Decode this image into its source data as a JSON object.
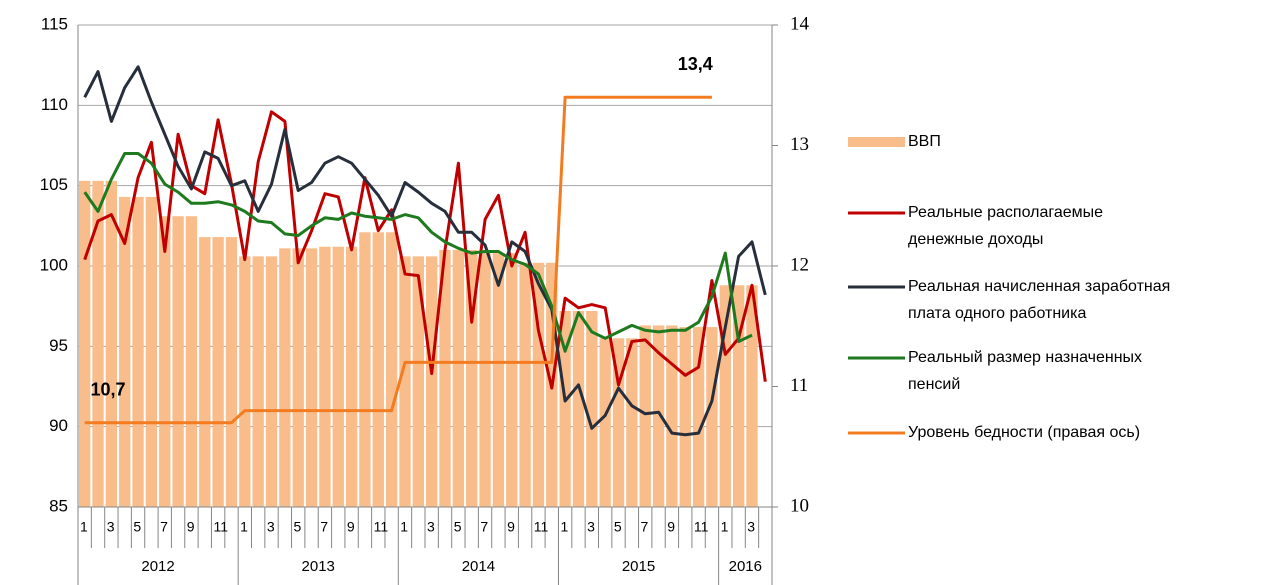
{
  "chart_data": {
    "type": "bar-line",
    "categories": [
      "1",
      null,
      "3",
      null,
      "5",
      null,
      "7",
      null,
      "9",
      null,
      "11",
      null,
      "1",
      null,
      "3",
      null,
      "5",
      null,
      "7",
      null,
      "9",
      null,
      "11",
      null,
      "1",
      null,
      "3",
      null,
      "5",
      null,
      "7",
      null,
      "9",
      null,
      "11",
      null,
      "1",
      null,
      "3",
      null,
      "5",
      null,
      "7",
      null,
      "9",
      null,
      "11",
      null,
      "1",
      null,
      "3",
      null
    ],
    "years": [
      "2012",
      "2013",
      "2014",
      "2015",
      "2016"
    ],
    "ylim": [
      85,
      115
    ],
    "yticks": [
      85,
      90,
      95,
      100,
      105,
      110,
      115
    ],
    "y2lim": [
      10,
      14
    ],
    "y2ticks": [
      10,
      11,
      12,
      13,
      14
    ],
    "grid": true,
    "legend": "right",
    "series": [
      {
        "name": "ВВП",
        "type": "bar",
        "color": "#f9bd8c",
        "values": [
          105.3,
          105.3,
          105.3,
          104.3,
          104.3,
          104.3,
          103.1,
          103.1,
          103.1,
          101.8,
          101.8,
          101.8,
          100.6,
          100.6,
          100.6,
          101.1,
          101.1,
          101.1,
          101.2,
          101.2,
          101.2,
          102.1,
          102.1,
          102.1,
          100.6,
          100.6,
          100.6,
          101.0,
          101.0,
          101.0,
          100.8,
          100.8,
          100.8,
          100.2,
          100.2,
          100.2,
          97.2,
          97.2,
          97.2,
          95.5,
          95.5,
          95.5,
          96.3,
          96.3,
          96.3,
          96.2,
          96.2,
          96.2,
          98.8,
          98.8,
          98.8,
          null
        ]
      },
      {
        "name": "Реальные располагаемые\nденежные доходы",
        "type": "line",
        "color": "#c00000",
        "values": [
          100.4,
          102.8,
          103.2,
          101.4,
          105.5,
          107.7,
          100.9,
          108.2,
          105.0,
          104.5,
          109.1,
          105.1,
          100.4,
          106.5,
          109.6,
          109.0,
          100.2,
          102.2,
          104.5,
          104.3,
          101.0,
          105.5,
          102.2,
          103.5,
          99.5,
          99.4,
          93.3,
          101.0,
          106.4,
          96.5,
          102.9,
          104.4,
          100.0,
          102.1,
          96.0,
          92.4,
          98.0,
          97.4,
          97.6,
          97.4,
          92.6,
          95.3,
          95.4,
          94.6,
          93.9,
          93.2,
          93.7,
          99.1,
          94.5,
          95.5,
          98.8,
          92.8
        ]
      },
      {
        "name": "Реальная начисленная заработная\nплата одного работника",
        "type": "line",
        "color": "#262f3b",
        "values": [
          110.5,
          112.1,
          109.0,
          111.1,
          112.4,
          110.2,
          108.2,
          106.2,
          104.8,
          107.1,
          106.7,
          105.0,
          105.3,
          103.4,
          105.1,
          108.5,
          104.7,
          105.2,
          106.4,
          106.8,
          106.4,
          105.4,
          104.4,
          103.1,
          105.2,
          104.6,
          103.9,
          103.4,
          102.1,
          102.1,
          101.3,
          98.8,
          101.5,
          100.9,
          98.9,
          97.3,
          91.6,
          92.6,
          89.9,
          90.7,
          92.4,
          91.3,
          90.8,
          90.9,
          89.6,
          89.5,
          89.6,
          91.6,
          96.2,
          100.6,
          101.5,
          98.2
        ]
      },
      {
        "name": "Реальный размер назначенных\nпенсий",
        "type": "line",
        "color": "#1e7a1e",
        "values": [
          104.6,
          103.4,
          105.4,
          107.0,
          107.0,
          106.4,
          105.1,
          104.6,
          103.9,
          103.9,
          104.0,
          103.8,
          103.4,
          102.8,
          102.7,
          102.0,
          101.9,
          102.5,
          103.0,
          102.9,
          103.3,
          103.1,
          103.0,
          102.9,
          103.2,
          103.0,
          102.1,
          101.5,
          101.1,
          100.8,
          100.9,
          100.9,
          100.4,
          100.1,
          99.5,
          97.5,
          94.7,
          97.1,
          95.9,
          95.5,
          95.9,
          96.3,
          96.0,
          95.9,
          96.0,
          96.0,
          96.5,
          98.1,
          100.8,
          95.3,
          95.7,
          null
        ]
      },
      {
        "name": "Уровень бедности (правая ось)",
        "type": "line",
        "axis": "y2",
        "color": "#f47c20",
        "values": [
          10.7,
          10.7,
          10.7,
          10.7,
          10.7,
          10.7,
          10.7,
          10.7,
          10.7,
          10.7,
          10.7,
          10.7,
          10.8,
          10.8,
          10.8,
          10.8,
          10.8,
          10.8,
          10.8,
          10.8,
          10.8,
          10.8,
          10.8,
          10.8,
          11.2,
          11.2,
          11.2,
          11.2,
          11.2,
          11.2,
          11.2,
          11.2,
          11.2,
          11.2,
          11.2,
          11.2,
          13.4,
          13.4,
          13.4,
          13.4,
          13.4,
          13.4,
          13.4,
          13.4,
          13.4,
          13.4,
          13.4,
          13.4,
          null,
          null,
          null,
          null
        ],
        "value_labels": [
          null,
          "10,7",
          null,
          null,
          null,
          null,
          null,
          null,
          null,
          null,
          null,
          null,
          null,
          null,
          null,
          null,
          null,
          null,
          null,
          null,
          null,
          null,
          null,
          null,
          null,
          null,
          null,
          null,
          null,
          null,
          null,
          null,
          null,
          null,
          null,
          null,
          null,
          null,
          null,
          null,
          null,
          null,
          null,
          null,
          null,
          "13,4",
          null,
          null,
          null,
          null,
          null,
          null
        ]
      }
    ]
  }
}
